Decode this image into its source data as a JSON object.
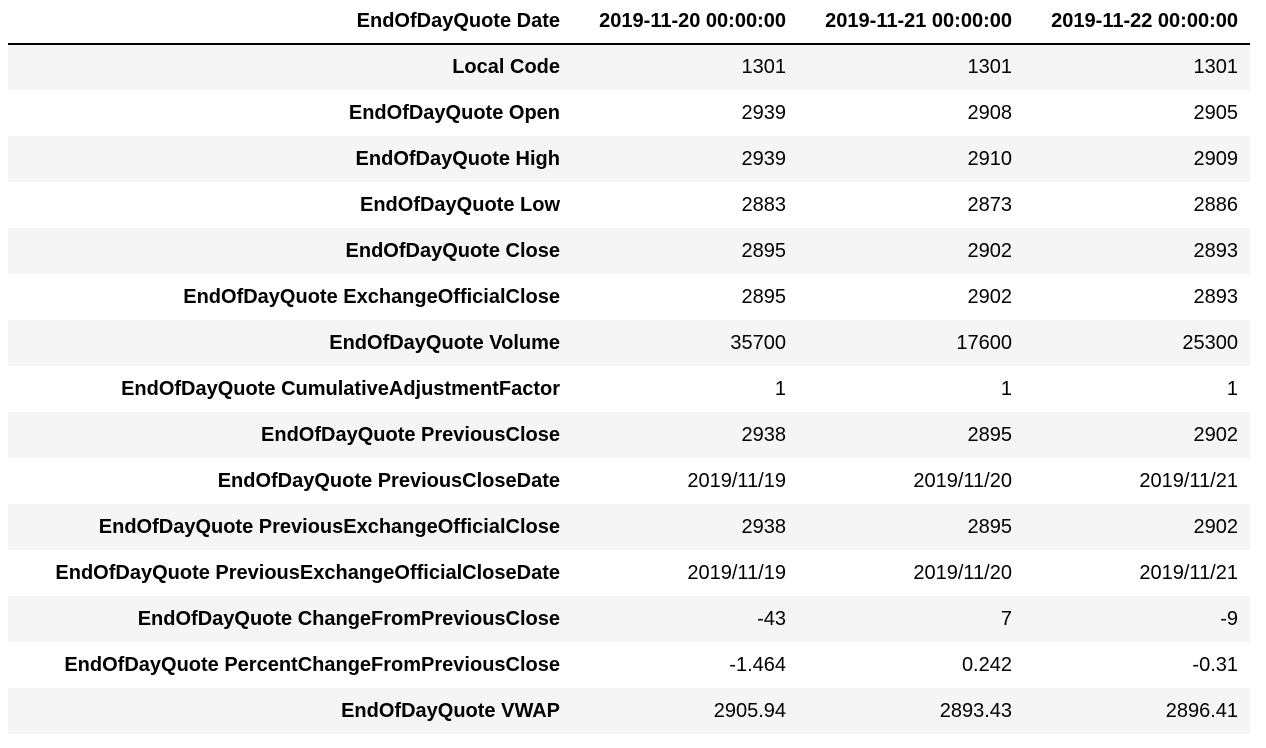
{
  "table": {
    "index_header": "EndOfDayQuote Date",
    "columns": [
      "2019-11-20 00:00:00",
      "2019-11-21 00:00:00",
      "2019-11-22 00:00:00"
    ],
    "rows": [
      {
        "label": "Local Code",
        "values": [
          "1301",
          "1301",
          "1301"
        ]
      },
      {
        "label": "EndOfDayQuote Open",
        "values": [
          "2939",
          "2908",
          "2905"
        ]
      },
      {
        "label": "EndOfDayQuote High",
        "values": [
          "2939",
          "2910",
          "2909"
        ]
      },
      {
        "label": "EndOfDayQuote Low",
        "values": [
          "2883",
          "2873",
          "2886"
        ]
      },
      {
        "label": "EndOfDayQuote Close",
        "values": [
          "2895",
          "2902",
          "2893"
        ]
      },
      {
        "label": "EndOfDayQuote ExchangeOfficialClose",
        "values": [
          "2895",
          "2902",
          "2893"
        ]
      },
      {
        "label": "EndOfDayQuote Volume",
        "values": [
          "35700",
          "17600",
          "25300"
        ]
      },
      {
        "label": "EndOfDayQuote CumulativeAdjustmentFactor",
        "values": [
          "1",
          "1",
          "1"
        ]
      },
      {
        "label": "EndOfDayQuote PreviousClose",
        "values": [
          "2938",
          "2895",
          "2902"
        ]
      },
      {
        "label": "EndOfDayQuote PreviousCloseDate",
        "values": [
          "2019/11/19",
          "2019/11/20",
          "2019/11/21"
        ]
      },
      {
        "label": "EndOfDayQuote PreviousExchangeOfficialClose",
        "values": [
          "2938",
          "2895",
          "2902"
        ]
      },
      {
        "label": "EndOfDayQuote PreviousExchangeOfficialCloseDate",
        "values": [
          "2019/11/19",
          "2019/11/20",
          "2019/11/21"
        ]
      },
      {
        "label": "EndOfDayQuote ChangeFromPreviousClose",
        "values": [
          "-43",
          "7",
          "-9"
        ]
      },
      {
        "label": "EndOfDayQuote PercentChangeFromPreviousClose",
        "values": [
          "-1.464",
          "0.242",
          "-0.31"
        ]
      },
      {
        "label": "EndOfDayQuote VWAP",
        "values": [
          "2905.94",
          "2893.43",
          "2896.41"
        ]
      }
    ]
  }
}
